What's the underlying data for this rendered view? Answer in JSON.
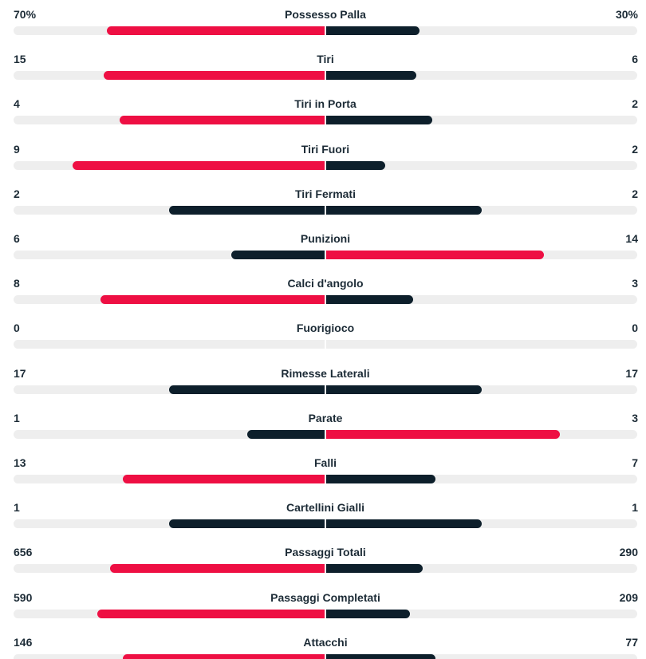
{
  "colors": {
    "leader": "#ee0f43",
    "trailer": "#0d1f2b",
    "track": "#eeeeee",
    "text": "#1c2b36"
  },
  "stats": [
    {
      "label": "Possesso Palla",
      "home": "70%",
      "away": "30%",
      "home_fill": 0.7,
      "away_fill": 0.3,
      "leader": "home"
    },
    {
      "label": "Tiri",
      "home": "15",
      "away": "6",
      "home_fill": 0.71,
      "away_fill": 0.29,
      "leader": "home"
    },
    {
      "label": "Tiri in Porta",
      "home": "4",
      "away": "2",
      "home_fill": 0.66,
      "away_fill": 0.34,
      "leader": "home"
    },
    {
      "label": "Tiri Fuori",
      "home": "9",
      "away": "2",
      "home_fill": 0.81,
      "away_fill": 0.19,
      "leader": "home"
    },
    {
      "label": "Tiri Fermati",
      "home": "2",
      "away": "2",
      "home_fill": 0.5,
      "away_fill": 0.5,
      "leader": "none"
    },
    {
      "label": "Punizioni",
      "home": "6",
      "away": "14",
      "home_fill": 0.3,
      "away_fill": 0.7,
      "leader": "away"
    },
    {
      "label": "Calci d'angolo",
      "home": "8",
      "away": "3",
      "home_fill": 0.72,
      "away_fill": 0.28,
      "leader": "home"
    },
    {
      "label": "Fuorigioco",
      "home": "0",
      "away": "0",
      "home_fill": 0.0,
      "away_fill": 0.0,
      "leader": "none"
    },
    {
      "label": "Rimesse Laterali",
      "home": "17",
      "away": "17",
      "home_fill": 0.5,
      "away_fill": 0.5,
      "leader": "none"
    },
    {
      "label": "Parate",
      "home": "1",
      "away": "3",
      "home_fill": 0.25,
      "away_fill": 0.75,
      "leader": "away"
    },
    {
      "label": "Falli",
      "home": "13",
      "away": "7",
      "home_fill": 0.65,
      "away_fill": 0.35,
      "leader": "home"
    },
    {
      "label": "Cartellini Gialli",
      "home": "1",
      "away": "1",
      "home_fill": 0.5,
      "away_fill": 0.5,
      "leader": "none"
    },
    {
      "label": "Passaggi Totali",
      "home": "656",
      "away": "290",
      "home_fill": 0.69,
      "away_fill": 0.31,
      "leader": "home"
    },
    {
      "label": "Passaggi Completati",
      "home": "590",
      "away": "209",
      "home_fill": 0.73,
      "away_fill": 0.27,
      "leader": "home"
    },
    {
      "label": "Attacchi",
      "home": "146",
      "away": "77",
      "home_fill": 0.65,
      "away_fill": 0.35,
      "leader": "home"
    }
  ]
}
